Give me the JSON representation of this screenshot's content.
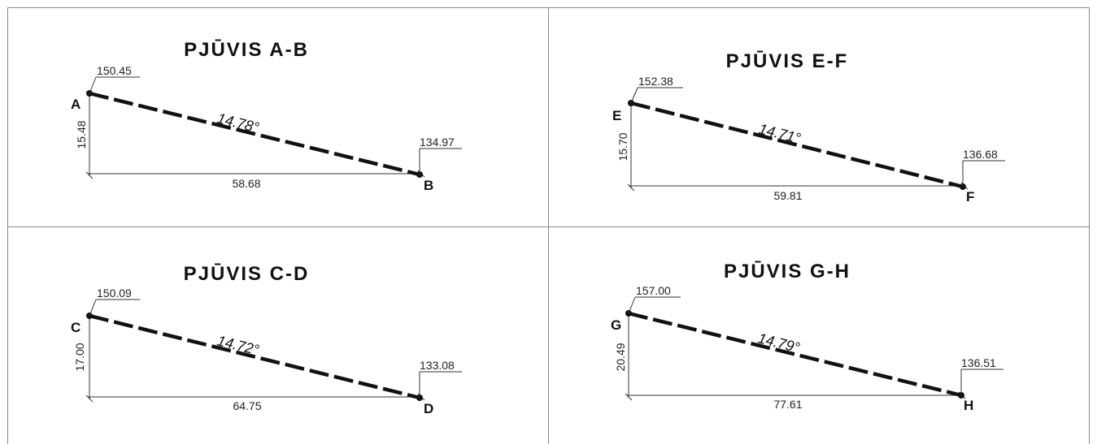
{
  "sections": [
    {
      "title": "PJŪVIS A-B",
      "start": {
        "label": "A",
        "elevation": "150.45"
      },
      "end": {
        "label": "B",
        "elevation": "134.97"
      },
      "height": "15.48",
      "length": "58.68",
      "angle": "14.78°"
    },
    {
      "title": "PJŪVIS E-F",
      "start": {
        "label": "E",
        "elevation": "152.38"
      },
      "end": {
        "label": "F",
        "elevation": "136.68"
      },
      "height": "15.70",
      "length": "59.81",
      "angle": "14.71°"
    },
    {
      "title": "PJŪVIS C-D",
      "start": {
        "label": "C",
        "elevation": "150.09"
      },
      "end": {
        "label": "D",
        "elevation": "133.08"
      },
      "height": "17.00",
      "length": "64.75",
      "angle": "14.72°"
    },
    {
      "title": "PJŪVIS G-H",
      "start": {
        "label": "G",
        "elevation": "157.00"
      },
      "end": {
        "label": "H",
        "elevation": "136.51"
      },
      "height": "20.49",
      "length": "77.61",
      "angle": "14.79°"
    }
  ]
}
